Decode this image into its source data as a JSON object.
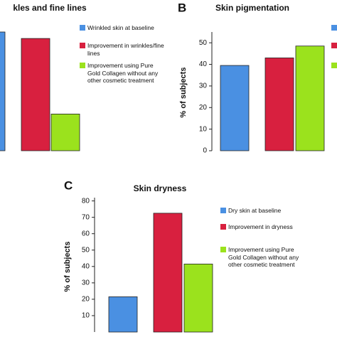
{
  "chart_data": [
    {
      "type": "bar",
      "title": "kles and fine lines",
      "ylim": [
        0,
        55
      ],
      "series": [
        {
          "name": "Wrinkled skin at baseline",
          "color": "#4a90e2",
          "values": [
            55
          ]
        },
        {
          "name": "Improvement in wrinkles/fine lines",
          "color": "#d8203f",
          "values": [
            52
          ]
        },
        {
          "name": "Improvement using Pure Gold Collagen without any other cosmetic treatment",
          "color": "#9be21d",
          "values": [
            17
          ]
        }
      ]
    },
    {
      "type": "bar",
      "panel_label": "B",
      "title": "Skin pigmentation",
      "y_label": "% of subjects",
      "ylim": [
        0,
        55
      ],
      "yticks": [
        0,
        10,
        20,
        30,
        40,
        50
      ],
      "series": [
        {
          "color": "#4a90e2",
          "values": [
            39.5
          ]
        },
        {
          "color": "#d8203f",
          "values": [
            43
          ]
        },
        {
          "color": "#9be21d",
          "values": [
            48.5
          ]
        }
      ]
    },
    {
      "type": "bar",
      "panel_label": "C",
      "title": "Skin dryness",
      "y_label": "% of subjects",
      "ylim": [
        0,
        82
      ],
      "yticks": [
        10,
        20,
        30,
        40,
        50,
        60,
        70,
        80
      ],
      "series": [
        {
          "name": "Dry skin at baseline",
          "color": "#4a90e2",
          "values": [
            21.5
          ]
        },
        {
          "name": "Improvement in dryness",
          "color": "#d8203f",
          "values": [
            72.5
          ]
        },
        {
          "name": "Improvement using Pure Gold Collagen without any other cosmetic treatment",
          "color": "#9be21d",
          "values": [
            41.5
          ]
        }
      ]
    }
  ]
}
